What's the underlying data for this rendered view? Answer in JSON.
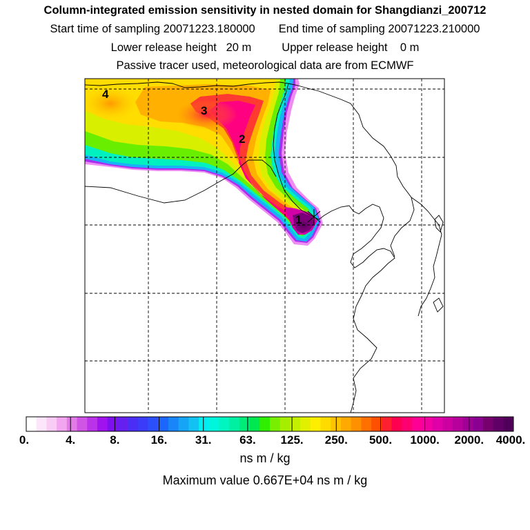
{
  "header": {
    "title": "Column-integrated emission sensitivity in nested domain for Shangdianzi_200712",
    "start_label": "Start time of sampling 20071223.180000",
    "end_label": "End time of sampling 20071223.210000",
    "lower_label": "Lower release height   20 m",
    "upper_label": "Upper release height    0 m",
    "tracer_label": "Passive tracer used, meteorological data are from ECMWF"
  },
  "map": {
    "release_labels": [
      "1",
      "2",
      "3",
      "4"
    ]
  },
  "legend": {
    "ticks": [
      "0.",
      "4.",
      "8.",
      "16.",
      "31.",
      "63.",
      "125.",
      "250.",
      "500.",
      "1000.",
      "2000.",
      "4000."
    ],
    "colors": [
      "#ffffff",
      "#fde6fb",
      "#f9ccf6",
      "#f2a6ef",
      "#e27ae8",
      "#d055e5",
      "#bb33e8",
      "#a012ee",
      "#7e10ee",
      "#6520f0",
      "#4b2ef5",
      "#3a3cfa",
      "#2a4ffb",
      "#1d66fb",
      "#1886f8",
      "#16a4f4",
      "#12c2f2",
      "#02ecf2",
      "#00f5dd",
      "#00f5c0",
      "#00f0a2",
      "#00ec78",
      "#00e84f",
      "#30ee00",
      "#78ee00",
      "#a6ee00",
      "#c4f000",
      "#e2f000",
      "#ffee00",
      "#ffdb00",
      "#ffc300",
      "#ffaa00",
      "#ff9000",
      "#ff7000",
      "#ff5000",
      "#ff2030",
      "#ff0050",
      "#ff0070",
      "#ff0094",
      "#f200a0",
      "#e000a8",
      "#cc00a0",
      "#b8009c",
      "#a00096",
      "#8a0090",
      "#76006e",
      "#600066",
      "#500058"
    ],
    "units": "ns m / kg",
    "max_value": "Maximum value  0.667E+04 ns m / kg"
  }
}
